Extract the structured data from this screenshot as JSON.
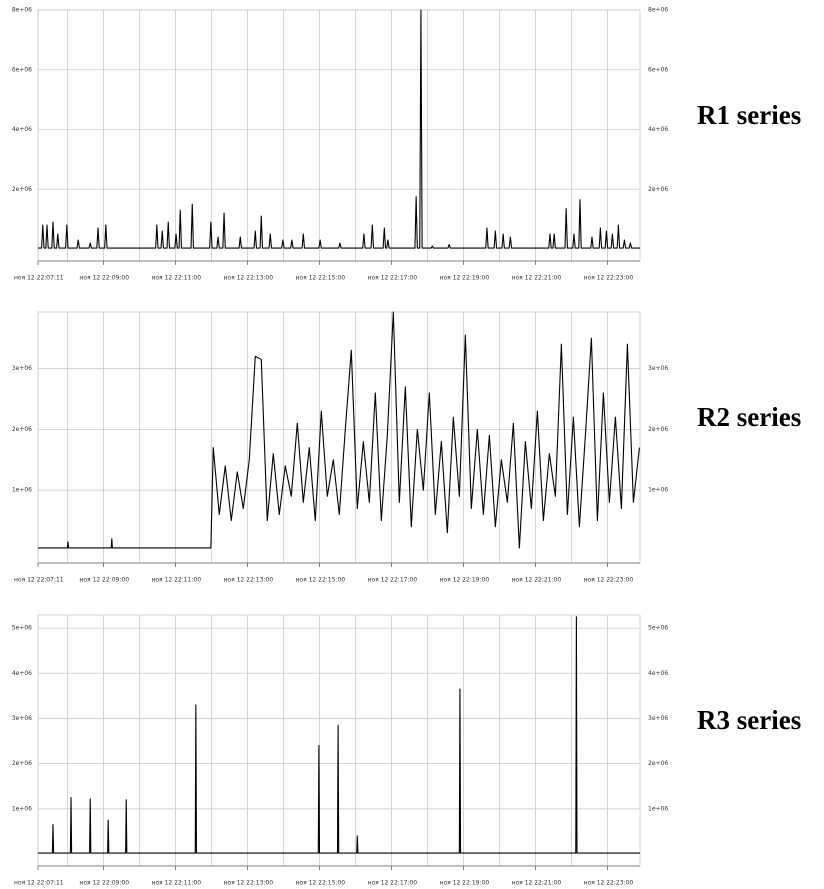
{
  "chart_data": [
    {
      "type": "line",
      "title": "R1 series",
      "color": "#000000",
      "grid": true,
      "right_axis": true,
      "x": [
        "22:07:11",
        "22:07:17",
        "22:07:19",
        "22:07:21",
        "22:07:24",
        "22:07:26",
        "22:07:28",
        "22:07:34",
        "22:07:36",
        "22:07:38",
        "22:07:42",
        "22:07:44",
        "22:07:46",
        "22:07:57",
        "22:07:59",
        "22:08:01",
        "22:08:16",
        "22:08:18",
        "22:08:20",
        "22:08:36",
        "22:08:38",
        "22:08:40",
        "22:08:49",
        "22:08:51",
        "22:08:53",
        "22:09:02",
        "22:09:04",
        "22:09:06",
        "22:10:27",
        "22:10:29",
        "22:10:31",
        "22:10:36",
        "22:10:38",
        "22:10:40",
        "22:10:46",
        "22:10:48",
        "22:10:50",
        "22:10:59",
        "22:11:01",
        "22:11:03",
        "22:11:06",
        "22:11:08",
        "22:11:10",
        "22:11:26",
        "22:11:28",
        "22:11:30",
        "22:11:57",
        "22:11:59",
        "22:12:01",
        "22:12:09",
        "22:12:11",
        "22:12:13",
        "22:12:19",
        "22:12:21",
        "22:12:23",
        "22:12:46",
        "22:12:48",
        "22:12:50",
        "22:13:11",
        "22:13:13",
        "22:13:15",
        "22:13:21",
        "22:13:23",
        "22:13:25",
        "22:13:36",
        "22:13:38",
        "22:13:40",
        "22:13:57",
        "22:13:59",
        "22:14:01",
        "22:14:12",
        "22:14:14",
        "22:14:16",
        "22:14:31",
        "22:14:33",
        "22:14:35",
        "22:14:59",
        "22:15:01",
        "22:15:03",
        "22:15:32",
        "22:15:34",
        "22:15:36",
        "22:16:12",
        "22:16:14",
        "22:16:16",
        "22:16:26",
        "22:16:28",
        "22:16:30",
        "22:16:46",
        "22:16:48",
        "22:16:50",
        "22:16:52",
        "22:16:54",
        "22:16:56",
        "22:17:39",
        "22:17:41",
        "22:17:43",
        "22:17:47",
        "22:17:49",
        "22:17:51",
        "22:18:06",
        "22:18:08",
        "22:18:10",
        "22:18:34",
        "22:18:36",
        "22:18:38",
        "22:19:37",
        "22:19:39",
        "22:19:41",
        "22:19:51",
        "22:19:53",
        "22:19:55",
        "22:20:04",
        "22:20:06",
        "22:20:08",
        "22:20:16",
        "22:20:18",
        "22:20:20",
        "22:21:22",
        "22:21:24",
        "22:21:26",
        "22:21:29",
        "22:21:31",
        "22:21:33",
        "22:21:49",
        "22:21:51",
        "22:21:53",
        "22:22:02",
        "22:22:04",
        "22:22:06",
        "22:22:12",
        "22:22:14",
        "22:22:16",
        "22:22:32",
        "22:22:34",
        "22:22:36",
        "22:22:46",
        "22:22:48",
        "22:22:50",
        "22:22:56",
        "22:22:58",
        "22:23:00",
        "22:23:06",
        "22:23:08",
        "22:23:10",
        "22:23:16",
        "22:23:18",
        "22:23:20",
        "22:23:26",
        "22:23:28",
        "22:23:30",
        "22:23:36",
        "22:23:38",
        "22:23:40",
        "22:23:54"
      ],
      "values": [
        30000,
        30000,
        800000,
        30000,
        30000,
        800000,
        30000,
        30000,
        900000,
        30000,
        30000,
        500000,
        30000,
        30000,
        800000,
        30000,
        30000,
        300000,
        30000,
        30000,
        200000,
        30000,
        30000,
        700000,
        30000,
        30000,
        800000,
        30000,
        30000,
        800000,
        30000,
        30000,
        600000,
        30000,
        30000,
        900000,
        30000,
        30000,
        500000,
        30000,
        30000,
        1300000,
        30000,
        30000,
        1500000,
        30000,
        30000,
        900000,
        30000,
        30000,
        400000,
        30000,
        30000,
        1200000,
        30000,
        30000,
        400000,
        30000,
        30000,
        600000,
        30000,
        30000,
        1100000,
        30000,
        30000,
        500000,
        30000,
        30000,
        300000,
        30000,
        30000,
        300000,
        30000,
        30000,
        500000,
        30000,
        30000,
        300000,
        30000,
        30000,
        200000,
        30000,
        30000,
        500000,
        30000,
        30000,
        800000,
        30000,
        30000,
        700000,
        30000,
        30000,
        300000,
        30000,
        30000,
        1750000,
        30000,
        30000,
        8000000,
        30000,
        30000,
        100000,
        30000,
        30000,
        150000,
        30000,
        30000,
        700000,
        30000,
        30000,
        600000,
        30000,
        30000,
        500000,
        30000,
        30000,
        400000,
        30000,
        30000,
        500000,
        30000,
        30000,
        500000,
        30000,
        30000,
        1350000,
        30000,
        30000,
        500000,
        30000,
        30000,
        1650000,
        30000,
        30000,
        400000,
        30000,
        30000,
        700000,
        30000,
        30000,
        600000,
        30000,
        30000,
        500000,
        30000,
        30000,
        800000,
        30000,
        30000,
        300000,
        30000,
        30000,
        200000,
        30000,
        30000
      ],
      "xlim": [
        "22:07:11",
        "22:23:54"
      ],
      "xticks": [
        {
          "value": "22:07:11",
          "label": "ноя 12 22:07:11"
        },
        {
          "value": "22:09:00",
          "label": "ноя 12 22:09:00"
        },
        {
          "value": "22:11:00",
          "label": "ноя 12 22:11:00"
        },
        {
          "value": "22:13:00",
          "label": "ноя 12 22:13:00"
        },
        {
          "value": "22:15:00",
          "label": "ноя 12 22:15:00"
        },
        {
          "value": "22:17:00",
          "label": "ноя 12 22:17:00"
        },
        {
          "value": "22:19:00",
          "label": "ноя 12 22:19:00"
        },
        {
          "value": "22:21:00",
          "label": "ноя 12 22:21:00"
        },
        {
          "value": "22:23:00",
          "label": "ноя 12 22:23:00"
        }
      ],
      "xminorticks": [
        "22:08:00",
        "22:10:00",
        "22:12:00",
        "22:14:00",
        "22:16:00",
        "22:18:00",
        "22:20:00",
        "22:22:00"
      ],
      "ylim": [
        0,
        8000000
      ],
      "yticks": [
        {
          "value": 2000000,
          "label": "2e+06"
        },
        {
          "value": 4000000,
          "label": "4e+06"
        },
        {
          "value": 6000000,
          "label": "6e+06"
        },
        {
          "value": 8000000,
          "label": "8e+06"
        }
      ]
    },
    {
      "type": "line",
      "title": "R2 series",
      "color": "#000000",
      "grid": true,
      "right_axis": true,
      "x": [
        "22:07:11",
        "22:08:00",
        "22:08:01",
        "22:08:02",
        "22:09:13",
        "22:09:14",
        "22:09:15",
        "22:11:59",
        "22:12:03",
        "22:12:13",
        "22:12:23",
        "22:12:33",
        "22:12:43",
        "22:12:53",
        "22:13:03",
        "22:13:13",
        "22:13:23",
        "22:13:33",
        "22:13:43",
        "22:13:53",
        "22:14:03",
        "22:14:13",
        "22:14:23",
        "22:14:33",
        "22:14:43",
        "22:14:53",
        "22:15:03",
        "22:15:13",
        "22:15:23",
        "22:15:33",
        "22:15:43",
        "22:15:53",
        "22:16:03",
        "22:16:13",
        "22:16:23",
        "22:16:33",
        "22:16:43",
        "22:16:53",
        "22:17:03",
        "22:17:13",
        "22:17:23",
        "22:17:33",
        "22:17:43",
        "22:17:53",
        "22:18:03",
        "22:18:13",
        "22:18:23",
        "22:18:33",
        "22:18:43",
        "22:18:53",
        "22:19:03",
        "22:19:13",
        "22:19:23",
        "22:19:33",
        "22:19:43",
        "22:19:53",
        "22:20:03",
        "22:20:13",
        "22:20:23",
        "22:20:33",
        "22:20:43",
        "22:20:53",
        "22:21:03",
        "22:21:13",
        "22:21:23",
        "22:21:33",
        "22:21:43",
        "22:21:53",
        "22:22:03",
        "22:22:13",
        "22:22:23",
        "22:22:33",
        "22:22:43",
        "22:22:53",
        "22:23:03",
        "22:23:13",
        "22:23:23",
        "22:23:33",
        "22:23:43",
        "22:23:53"
      ],
      "values": [
        50000,
        50000,
        150000,
        50000,
        50000,
        200000,
        50000,
        50000,
        1700000,
        600000,
        1400000,
        500000,
        1300000,
        700000,
        1500000,
        3200000,
        3150000,
        500000,
        1600000,
        600000,
        1400000,
        900000,
        2100000,
        800000,
        1700000,
        500000,
        2300000,
        900000,
        1500000,
        600000,
        2000000,
        3300000,
        700000,
        1800000,
        800000,
        2600000,
        500000,
        1900000,
        3930000,
        800000,
        2700000,
        400000,
        2000000,
        1000000,
        2600000,
        600000,
        1800000,
        300000,
        2200000,
        900000,
        3550000,
        700000,
        2000000,
        600000,
        1900000,
        400000,
        1500000,
        800000,
        2100000,
        50000,
        1800000,
        700000,
        2300000,
        500000,
        1600000,
        900000,
        3400000,
        600000,
        2200000,
        400000,
        1900000,
        3500000,
        500000,
        2600000,
        800000,
        2200000,
        700000,
        3400000,
        800000,
        1700000
      ],
      "xlim": [
        "22:07:11",
        "22:23:54"
      ],
      "xticks": [
        {
          "value": "22:07:11",
          "label": "ноя 12 22:07:11"
        },
        {
          "value": "22:09:00",
          "label": "ноя 12 22:09:00"
        },
        {
          "value": "22:11:00",
          "label": "ноя 12 22:11:00"
        },
        {
          "value": "22:13:00",
          "label": "ноя 12 22:13:00"
        },
        {
          "value": "22:15:00",
          "label": "ноя 12 22:15:00"
        },
        {
          "value": "22:17:00",
          "label": "ноя 12 22:17:00"
        },
        {
          "value": "22:19:00",
          "label": "ноя 12 22:19:00"
        },
        {
          "value": "22:21:00",
          "label": "ноя 12 22:21:00"
        },
        {
          "value": "22:23:00",
          "label": "ноя 12 22:23:00"
        }
      ],
      "xminorticks": [
        "22:08:00",
        "22:10:00",
        "22:12:00",
        "22:14:00",
        "22:16:00",
        "22:18:00",
        "22:20:00",
        "22:22:00"
      ],
      "ylim": [
        0,
        3930000
      ],
      "yticks": [
        {
          "value": 1000000,
          "label": "1e+06"
        },
        {
          "value": 2000000,
          "label": "2e+06"
        },
        {
          "value": 3000000,
          "label": "3e+06"
        }
      ]
    },
    {
      "type": "line",
      "title": "R3 series",
      "color": "#000000",
      "grid": true,
      "right_axis": true,
      "x": [
        "22:07:11",
        "22:07:35",
        "22:07:36",
        "22:07:37",
        "22:08:05",
        "22:08:06",
        "22:08:07",
        "22:08:37",
        "22:08:38",
        "22:08:39",
        "22:09:07",
        "22:09:08",
        "22:09:09",
        "22:09:37",
        "22:09:38",
        "22:09:39",
        "22:11:33",
        "22:11:34",
        "22:11:35",
        "22:14:58",
        "22:14:59",
        "22:15:00",
        "22:15:30",
        "22:15:31",
        "22:15:32",
        "22:16:02",
        "22:16:03",
        "22:16:04",
        "22:18:53",
        "22:18:54",
        "22:18:55",
        "22:22:07",
        "22:22:08",
        "22:22:09",
        "22:23:54"
      ],
      "values": [
        20000,
        20000,
        650000,
        20000,
        20000,
        1250000,
        20000,
        20000,
        1220000,
        20000,
        20000,
        750000,
        20000,
        20000,
        1200000,
        20000,
        20000,
        3300000,
        20000,
        20000,
        2400000,
        20000,
        20000,
        2850000,
        20000,
        20000,
        400000,
        20000,
        20000,
        3650000,
        20000,
        20000,
        5250000,
        20000,
        20000
      ],
      "xlim": [
        "22:07:11",
        "22:23:54"
      ],
      "xticks": [
        {
          "value": "22:07:11",
          "label": "ноя 12 22:07:11"
        },
        {
          "value": "22:09:00",
          "label": "ноя 12 22:09:00"
        },
        {
          "value": "22:11:00",
          "label": "ноя 12 22:11:00"
        },
        {
          "value": "22:13:00",
          "label": "ноя 12 22:13:00"
        },
        {
          "value": "22:15:00",
          "label": "ноя 12 22:15:00"
        },
        {
          "value": "22:17:00",
          "label": "ноя 12 22:17:00"
        },
        {
          "value": "22:19:00",
          "label": "ноя 12 22:19:00"
        },
        {
          "value": "22:21:00",
          "label": "ноя 12 22:21:00"
        },
        {
          "value": "22:23:00",
          "label": "ноя 12 22:23:00"
        }
      ],
      "xminorticks": [
        "22:08:00",
        "22:10:00",
        "22:12:00",
        "22:14:00",
        "22:16:00",
        "22:18:00",
        "22:20:00",
        "22:22:00"
      ],
      "ylim": [
        0,
        5290000
      ],
      "yticks": [
        {
          "value": 1000000,
          "label": "1e+06"
        },
        {
          "value": 2000000,
          "label": "2e+06"
        },
        {
          "value": 3000000,
          "label": "3e+06"
        },
        {
          "value": 4000000,
          "label": "4e+06"
        },
        {
          "value": 5000000,
          "label": "5e+06"
        }
      ]
    }
  ]
}
